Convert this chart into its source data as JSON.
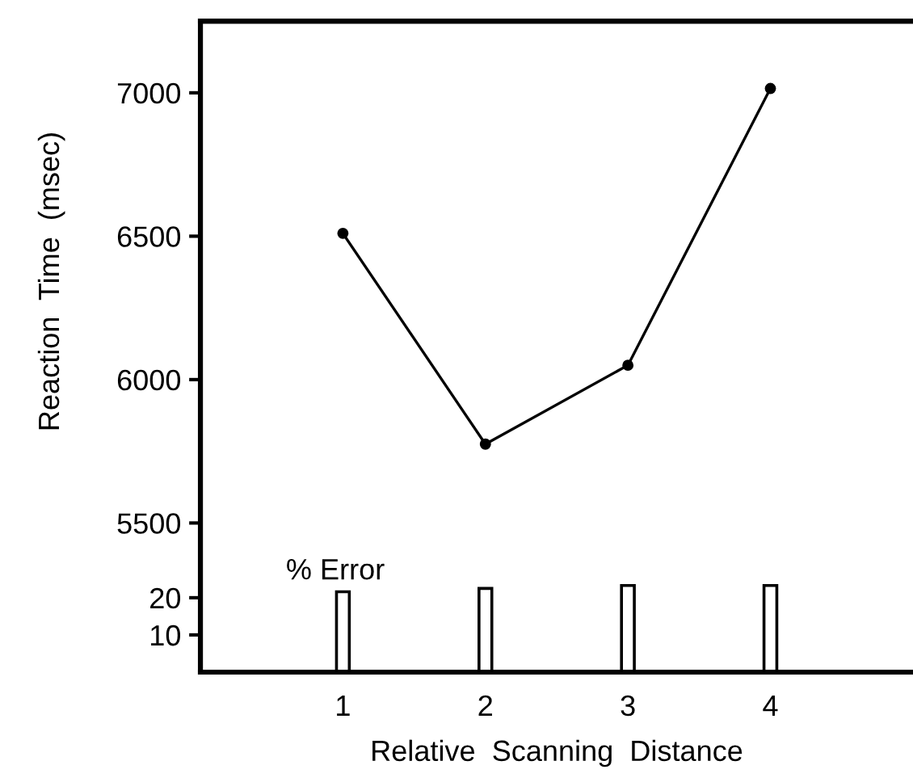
{
  "chart_data": {
    "type": "line",
    "xlabel": "Relative  Scanning  Distance",
    "ylabel": "Reaction  Time  (msec)",
    "y2label": "% Error",
    "x": [
      1,
      2,
      3,
      4
    ],
    "xlim": [
      0,
      5
    ],
    "xticks": [
      1,
      2,
      3,
      4
    ],
    "ylim": [
      4980,
      7250
    ],
    "yticks": [
      5500,
      6000,
      6500,
      7000
    ],
    "y2lim": [
      0,
      175
    ],
    "y2ticks": [
      10,
      20
    ],
    "marker": "circle",
    "grid": false,
    "legend": false,
    "series": [
      {
        "color": "#000000",
        "values": [
          6510,
          5775,
          6050,
          7015
        ]
      },
      {
        "type": "bar",
        "axis": "y2",
        "color": "#ffffff",
        "values": [
          21.6,
          22.5,
          23.3,
          23.3
        ]
      }
    ]
  }
}
